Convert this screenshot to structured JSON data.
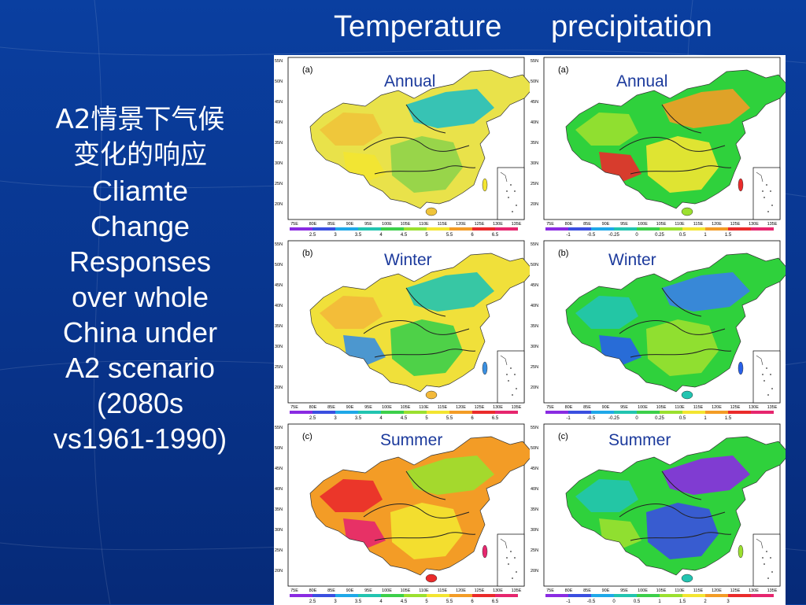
{
  "header": {
    "temperature": "Temperature",
    "precipitation": "precipitation"
  },
  "title": {
    "lines": [
      "A2情景下气候",
      "变化的响应",
      "Cliamte",
      "Change",
      "Responses",
      "over whole",
      "China under",
      "A2 scenario",
      "(2080s",
      "vs1961-1990)"
    ]
  },
  "map_axes": {
    "lon_ticks": [
      "75E",
      "80E",
      "85E",
      "90E",
      "95E",
      "100E",
      "105E",
      "110E",
      "115E",
      "120E",
      "125E",
      "130E",
      "135E"
    ],
    "lat_ticks": [
      "55N",
      "50N",
      "45N",
      "40N",
      "35N",
      "30N",
      "25N",
      "20N"
    ]
  },
  "legends": {
    "temperature": {
      "labels": [
        "2.5",
        "3",
        "3.5",
        "4",
        "4.5",
        "5",
        "5.5",
        "6",
        "6.5"
      ],
      "colors": [
        "#8a2be2",
        "#3a4fe0",
        "#1fa8e8",
        "#22c4b0",
        "#3ccf4a",
        "#9be02f",
        "#f3e531",
        "#f39c26",
        "#ea2b2b",
        "#e6266e"
      ]
    },
    "precipitation": {
      "labels": [
        "-1",
        "-0.5",
        "-0.25",
        "0",
        "0.25",
        "0.5",
        "1",
        "1.5"
      ],
      "colors": [
        "#8a2be2",
        "#3a4fe0",
        "#1fa8e8",
        "#22c4b0",
        "#3ccf4a",
        "#9be02f",
        "#f3e531",
        "#f39c26",
        "#ea2b2b",
        "#e6266e"
      ]
    },
    "precipitation_summer": {
      "labels": [
        "-1",
        "-0.5",
        "0",
        "0.5",
        "1",
        "1.5",
        "2",
        "3"
      ],
      "colors": [
        "#8a2be2",
        "#3a4fe0",
        "#1fa8e8",
        "#22c4b0",
        "#3ccf4a",
        "#9be02f",
        "#f3e531",
        "#f39c26",
        "#ea2b2b",
        "#e6266e"
      ]
    }
  },
  "panels": [
    {
      "id": "temp-annual",
      "label": "(a)",
      "season": "Annual",
      "legend": "temperature",
      "base": "#e9e24a",
      "regions": [
        "#f0c43a",
        "#8fd44a",
        "#24c0c0",
        "#f3e531"
      ]
    },
    {
      "id": "prec-annual",
      "label": "(a)",
      "season": "Annual",
      "legend": "precipitation",
      "base": "#2fd13c",
      "regions": [
        "#9be02f",
        "#f3e531",
        "#f39c26",
        "#ea2b2b"
      ]
    },
    {
      "id": "temp-winter",
      "label": "(b)",
      "season": "Winter",
      "legend": "temperature",
      "base": "#f0e03a",
      "regions": [
        "#f3b93a",
        "#3ccf4a",
        "#22c4b0",
        "#3a8fe0"
      ]
    },
    {
      "id": "prec-winter",
      "label": "(b)",
      "season": "Winter",
      "legend": "precipitation",
      "base": "#2fd13c",
      "regions": [
        "#22c4b0",
        "#9be02f",
        "#3a7fe8",
        "#2860e8"
      ]
    },
    {
      "id": "temp-summer",
      "label": "(c)",
      "season": "Summer",
      "legend": "temperature",
      "base": "#f39c26",
      "regions": [
        "#ea2b2b",
        "#f3e531",
        "#9be02f",
        "#e6266e"
      ]
    },
    {
      "id": "prec-summer",
      "label": "(c)",
      "season": "Summer",
      "legend": "precipitation_summer",
      "base": "#2fd13c",
      "regions": [
        "#22c4b0",
        "#3a4fe0",
        "#8a2be2",
        "#9be02f"
      ]
    }
  ]
}
